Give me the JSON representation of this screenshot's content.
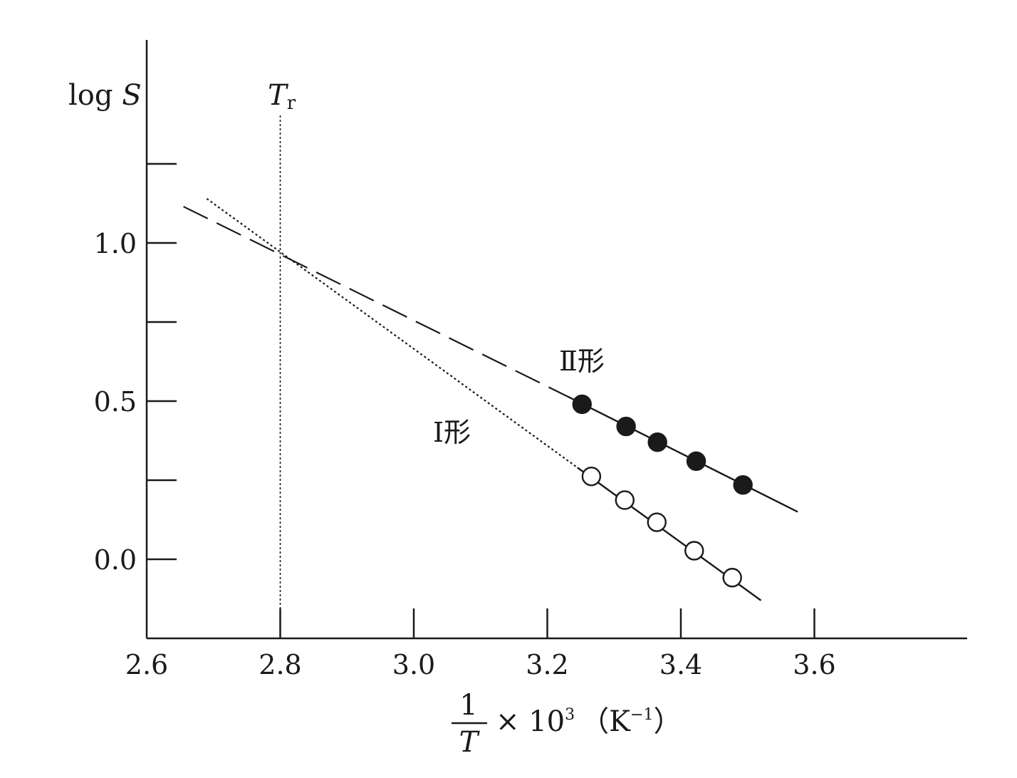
{
  "chart_data": {
    "type": "scatter",
    "title": "",
    "xlabel": {
      "numerator": "1",
      "denominator": "T",
      "multiplier": "× 10",
      "exponent": "3",
      "unit_open": "（K",
      "unit_exponent": "−1",
      "unit_close": "）"
    },
    "ylabel": {
      "prefix": "log ",
      "symbol": "S"
    },
    "xlim": [
      2.6,
      3.85
    ],
    "ylim": [
      -0.25,
      1.65
    ],
    "x_ticks": [
      {
        "value": 2.6,
        "label": "2.6"
      },
      {
        "value": 2.8,
        "label": "2.8"
      },
      {
        "value": 3.0,
        "label": "3.0"
      },
      {
        "value": 3.2,
        "label": "3.2"
      },
      {
        "value": 3.4,
        "label": "3.4"
      },
      {
        "value": 3.6,
        "label": "3.6"
      }
    ],
    "y_ticks": [
      {
        "value": 0.0,
        "label": "0.0"
      },
      {
        "value": 0.25,
        "label": ""
      },
      {
        "value": 0.5,
        "label": "0.5"
      },
      {
        "value": 0.75,
        "label": ""
      },
      {
        "value": 1.0,
        "label": "1.0"
      },
      {
        "value": 1.25,
        "label": ""
      }
    ],
    "grid": false,
    "reference_line": {
      "x": 2.8,
      "label_main": "T",
      "label_sub": "r",
      "style": "dotted"
    },
    "series": [
      {
        "name": "Ⅱ形",
        "marker": "filled-circle",
        "points": [
          {
            "x": 3.252,
            "y": 0.49
          },
          {
            "x": 3.318,
            "y": 0.42
          },
          {
            "x": 3.365,
            "y": 0.37
          },
          {
            "x": 3.423,
            "y": 0.31
          },
          {
            "x": 3.493,
            "y": 0.235
          }
        ],
        "fit_line": {
          "x1": 3.23,
          "y1": 0.515,
          "x2": 3.575,
          "y2": 0.15,
          "style": "solid"
        },
        "extrapolation": {
          "x1": 2.655,
          "y1": 1.115,
          "x2": 3.23,
          "y2": 0.515,
          "style": "dashed"
        }
      },
      {
        "name": "Ⅰ形",
        "marker": "open-circle",
        "points": [
          {
            "x": 3.266,
            "y": 0.262
          },
          {
            "x": 3.316,
            "y": 0.187
          },
          {
            "x": 3.364,
            "y": 0.117
          },
          {
            "x": 3.42,
            "y": 0.027
          },
          {
            "x": 3.477,
            "y": -0.058
          }
        ],
        "fit_line": {
          "x1": 3.245,
          "y1": 0.29,
          "x2": 3.52,
          "y2": -0.13,
          "style": "solid"
        },
        "extrapolation": {
          "x1": 2.69,
          "y1": 1.14,
          "x2": 3.245,
          "y2": 0.29,
          "style": "dotted"
        }
      }
    ],
    "colors": {
      "ink": "#1a1a1a",
      "background": "#ffffff"
    }
  }
}
